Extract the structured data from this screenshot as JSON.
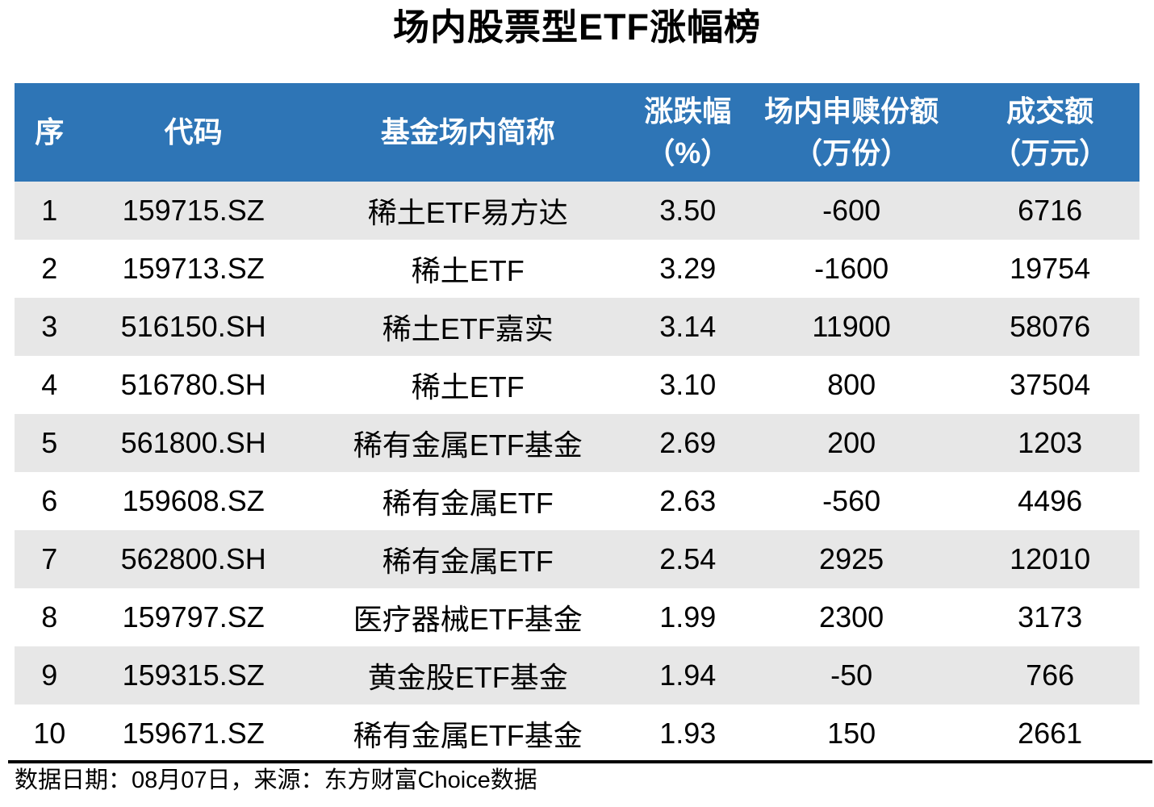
{
  "colors": {
    "header_bg": "#2E75B6",
    "header_text": "#FFFFFF",
    "stripe": "#E7E7E7",
    "text": "#000000",
    "rule": "#000000",
    "page_bg": "#FFFFFF"
  },
  "chart_data": {
    "type": "table",
    "title": "场内股票型ETF涨幅榜",
    "columns": [
      "序",
      "代码",
      "基金场内简称",
      "涨跌幅\n（%）",
      "场内申赎份额\n（万份）",
      "成交额\n（万元）"
    ],
    "rows": [
      [
        "1",
        "159715.SZ",
        "稀土ETF易方达",
        "3.50",
        "-600",
        "6716"
      ],
      [
        "2",
        "159713.SZ",
        "稀土ETF",
        "3.29",
        "-1600",
        "19754"
      ],
      [
        "3",
        "516150.SH",
        "稀土ETF嘉实",
        "3.14",
        "11900",
        "58076"
      ],
      [
        "4",
        "516780.SH",
        "稀土ETF",
        "3.10",
        "800",
        "37504"
      ],
      [
        "5",
        "561800.SH",
        "稀有金属ETF基金",
        "2.69",
        "200",
        "1203"
      ],
      [
        "6",
        "159608.SZ",
        "稀有金属ETF",
        "2.63",
        "-560",
        "4496"
      ],
      [
        "7",
        "562800.SH",
        "稀有金属ETF",
        "2.54",
        "2925",
        "12010"
      ],
      [
        "8",
        "159797.SZ",
        "医疗器械ETF基金",
        "1.99",
        "2300",
        "3173"
      ],
      [
        "9",
        "159315.SZ",
        "黄金股ETF基金",
        "1.94",
        "-50",
        "766"
      ],
      [
        "10",
        "159671.SZ",
        "稀有金属ETF基金",
        "1.93",
        "150",
        "2661"
      ]
    ],
    "source_note": "数据日期：08月07日，来源：东方财富Choice数据",
    "legend": "none",
    "grid": "row-stripes-only"
  }
}
